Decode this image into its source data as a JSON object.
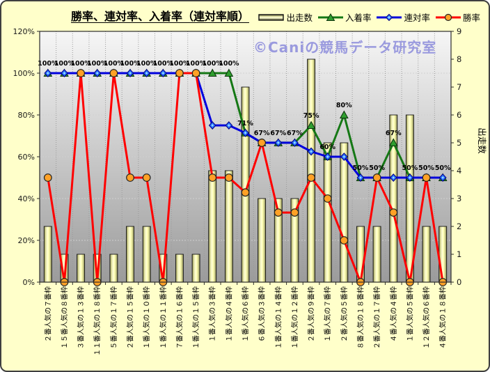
{
  "page": {
    "background": "#ffffca"
  },
  "header": {
    "title": "勝率、連対率、入着率（連対率順）"
  },
  "watermark": {
    "text": "©Caniの競馬データ研究室",
    "color": "#9a9ade"
  },
  "legend": {
    "items": [
      {
        "label": "出走数",
        "swatch": "bar"
      },
      {
        "label": "入着率",
        "swatch": "triangle",
        "line_color": "#157815",
        "fill": "#2f9e2f"
      },
      {
        "label": "連対率",
        "swatch": "diamond",
        "line_color": "#0000dd",
        "fill": "#2a6bff"
      },
      {
        "label": "勝率",
        "swatch": "circle",
        "line_color": "#ff0000",
        "fill": "#ffa126"
      }
    ]
  },
  "chart_data": {
    "type": "combo-bar-line",
    "title": "勝率、連対率、入着率（連対率順）",
    "categories": [
      "２番人気の７番枠",
      "１５番人気の８番枠",
      "３番人気の１３番枠",
      "１１番人気の１８番枠",
      "５番人気の１７番枠",
      "２番人気の１５番枠",
      "１番人気の１０番枠",
      "１番人気の１１番枠",
      "７番人気の１６番枠",
      "１番人気の１５番枠",
      "１番人気の３番枠",
      "１番人気の４番枠",
      "１番人気の６番枠",
      "６番人気の３番枠",
      "１番人気の１４番枠",
      "１番人気の１２番枠",
      "２番人気の９番枠",
      "１番人気の７番枠",
      "２番人気の５番枠",
      "８番人気の１８番枠",
      "２番人気の１７番枠",
      "４番人気の４番枠",
      "１番人気の５番枠",
      "１２番人気の６番枠",
      "４番人気の１８番枠"
    ],
    "left_axis": {
      "min": 0,
      "max": 120,
      "tick_step": 20,
      "tick_labels": [
        "0%",
        "20%",
        "40%",
        "60%",
        "80%",
        "100%",
        "120%"
      ]
    },
    "right_axis": {
      "min": 0,
      "max": 9,
      "tick_step": 1,
      "title": "出走数",
      "tick_labels": [
        "0",
        "1",
        "2",
        "3",
        "4",
        "5",
        "6",
        "7",
        "8",
        "9"
      ]
    },
    "grid": {
      "horizontal": true,
      "vertical": true
    },
    "series": [
      {
        "key": "starts",
        "name": "出走数",
        "type": "bar",
        "axis": "right",
        "values": [
          2,
          1,
          1,
          1,
          1,
          2,
          2,
          1,
          1,
          1,
          4,
          4,
          7,
          3,
          3,
          3,
          8,
          5,
          5,
          2,
          2,
          6,
          6,
          2,
          2
        ]
      },
      {
        "key": "place-rate",
        "name": "入着率",
        "type": "line",
        "axis": "left",
        "marker": "triangle",
        "color": "#157815",
        "marker_fill": "#2f9e2f",
        "values": [
          100,
          100,
          100,
          100,
          100,
          100,
          100,
          100,
          100,
          100,
          100,
          100,
          71.4,
          66.7,
          66.7,
          66.7,
          75,
          60,
          80,
          50,
          50,
          66.7,
          50,
          50,
          50
        ],
        "data_labels": [
          "100%",
          "100%",
          "100%",
          "100%",
          "100%",
          "100%",
          "100%",
          "100%",
          "100%",
          "100%",
          "100%",
          "100%",
          "71%",
          "67%",
          "67%",
          "67%",
          "75%",
          "60%",
          "80%",
          "50%",
          "50%",
          "67%",
          "50%",
          "50%",
          "50%"
        ]
      },
      {
        "key": "quinella-rate",
        "name": "連対率",
        "type": "line",
        "axis": "left",
        "marker": "diamond",
        "color": "#0000dd",
        "marker_fill": "#2a6bff",
        "values": [
          100,
          100,
          100,
          100,
          100,
          100,
          100,
          100,
          100,
          100,
          75,
          75,
          71.4,
          66.7,
          66.7,
          66.7,
          62.5,
          60,
          60,
          50,
          50,
          50,
          50,
          50,
          50
        ]
      },
      {
        "key": "win-rate",
        "name": "勝率",
        "type": "line",
        "axis": "left",
        "marker": "circle",
        "color": "#ff0000",
        "marker_fill": "#ffa126",
        "values": [
          50,
          0,
          100,
          0,
          100,
          50,
          50,
          0,
          100,
          100,
          50,
          50,
          42.9,
          66.7,
          33.3,
          33.3,
          50,
          40,
          20,
          0,
          50,
          33.3,
          0,
          50,
          0
        ]
      }
    ]
  }
}
